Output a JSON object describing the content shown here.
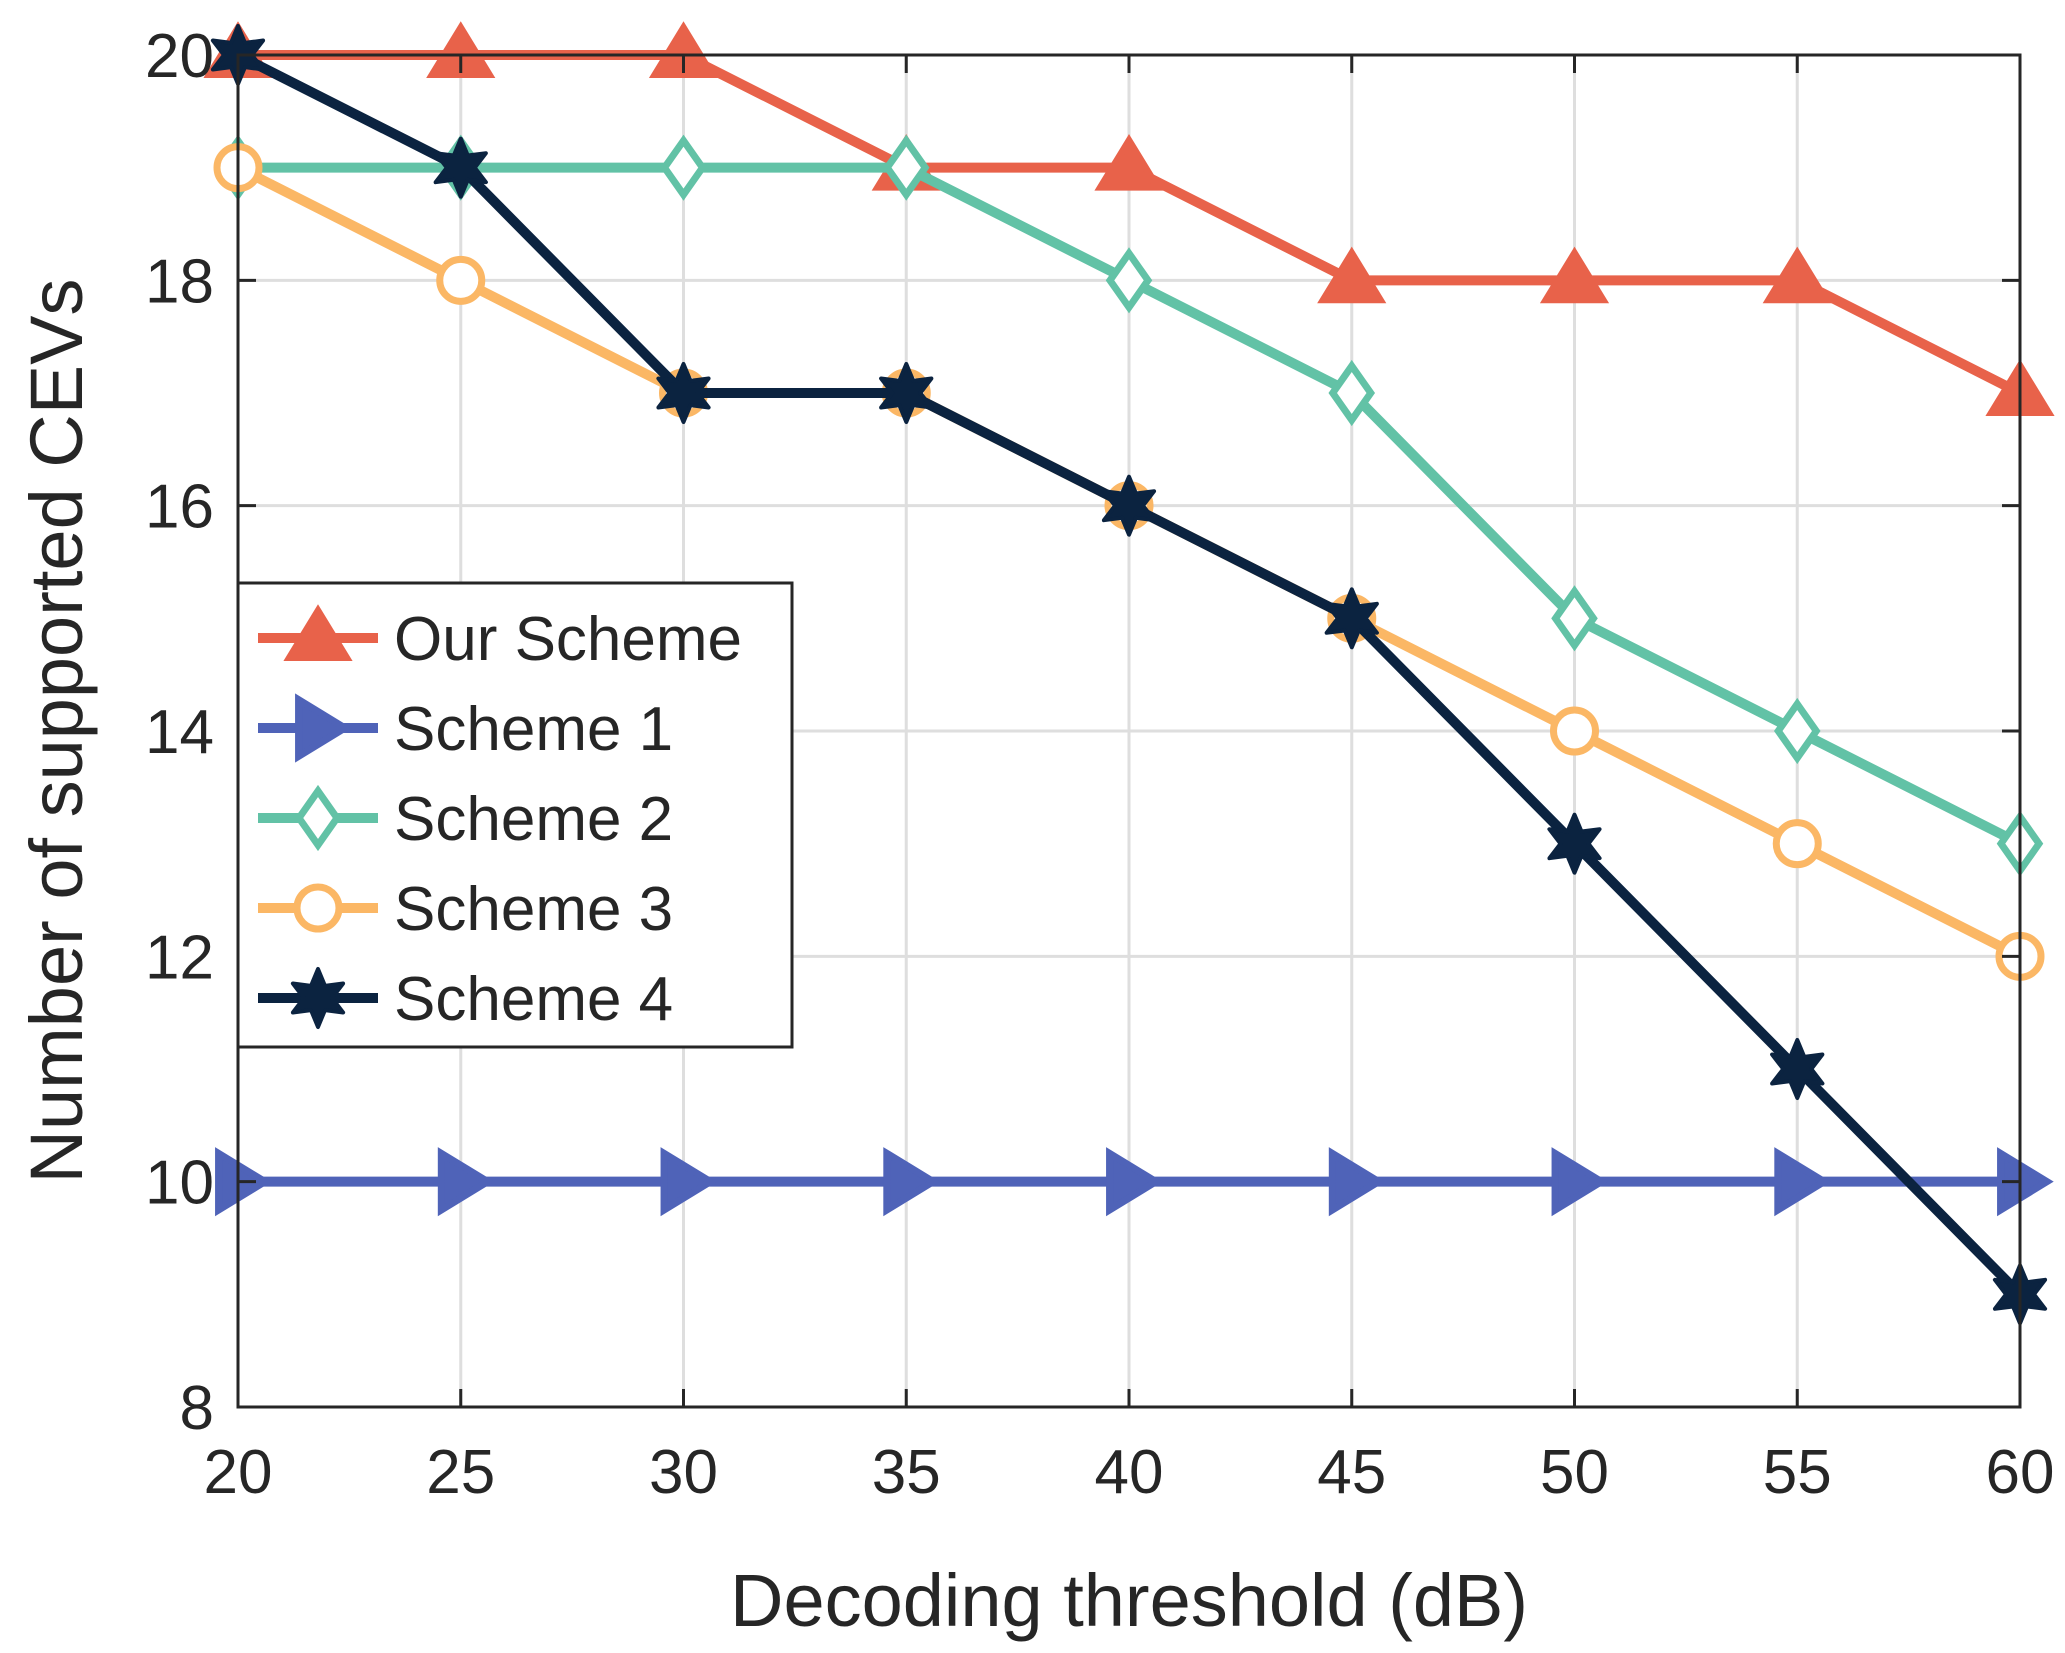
{
  "chart_data": {
    "type": "line",
    "xlabel": "Decoding threshold (dB)",
    "ylabel": "Number of supported CEVs",
    "xlim": [
      20,
      60
    ],
    "ylim": [
      8,
      20
    ],
    "xticks": [
      20,
      25,
      30,
      35,
      40,
      45,
      50,
      55,
      60
    ],
    "yticks": [
      8,
      10,
      12,
      14,
      16,
      18,
      20
    ],
    "grid": true,
    "legend_position": "middle-left",
    "x": [
      20,
      25,
      30,
      35,
      40,
      45,
      50,
      55,
      60
    ],
    "series": [
      {
        "name": "Our Scheme",
        "color": "#e8624a",
        "marker": "triangle-up",
        "values": [
          20,
          20,
          20,
          19,
          19,
          18,
          18,
          18,
          17
        ]
      },
      {
        "name": "Scheme 1",
        "color": "#4f63b8",
        "marker": "triangle-right",
        "values": [
          10,
          10,
          10,
          10,
          10,
          10,
          10,
          10,
          10
        ]
      },
      {
        "name": "Scheme 2",
        "color": "#62c2a6",
        "marker": "diamond",
        "values": [
          19,
          19,
          19,
          19,
          18,
          17,
          15,
          14,
          13
        ]
      },
      {
        "name": "Scheme 3",
        "color": "#fbb765",
        "marker": "circle",
        "values": [
          19,
          18,
          17,
          17,
          16,
          15,
          14,
          13,
          12
        ]
      },
      {
        "name": "Scheme 4",
        "color": "#0b2340",
        "marker": "hexagram",
        "values": [
          20,
          19,
          17,
          17,
          16,
          15,
          13,
          11,
          9
        ]
      }
    ]
  }
}
